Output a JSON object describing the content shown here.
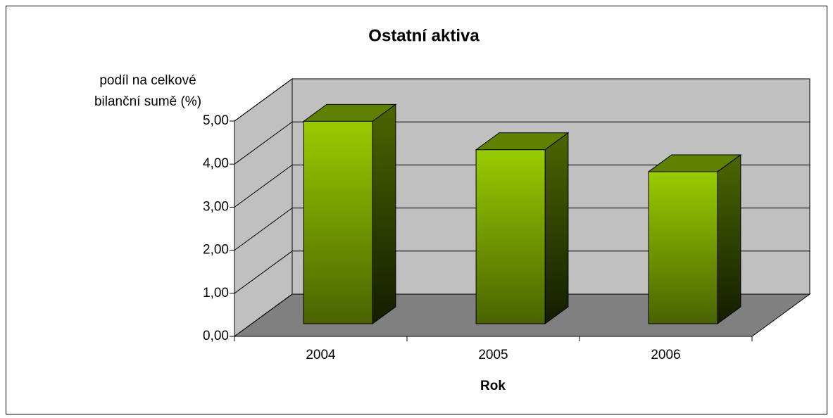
{
  "chart_data": {
    "type": "bar3d",
    "title": "Ostatní aktiva",
    "y_label": "podíl na celkové bilanční sumě (%)",
    "x_label": "Rok",
    "categories": [
      "2004",
      "2005",
      "2006"
    ],
    "values": [
      4.7,
      4.04,
      3.53
    ],
    "color": "#99cc00",
    "ylim": [
      0,
      5
    ],
    "yticks": [
      {
        "value": 0,
        "label": "0,00"
      },
      {
        "value": 1,
        "label": "1,00"
      },
      {
        "value": 2,
        "label": "2,00"
      },
      {
        "value": 3,
        "label": "3,00"
      },
      {
        "value": 4,
        "label": "4,00"
      },
      {
        "value": 5,
        "label": "5,00"
      }
    ],
    "grid": true
  }
}
